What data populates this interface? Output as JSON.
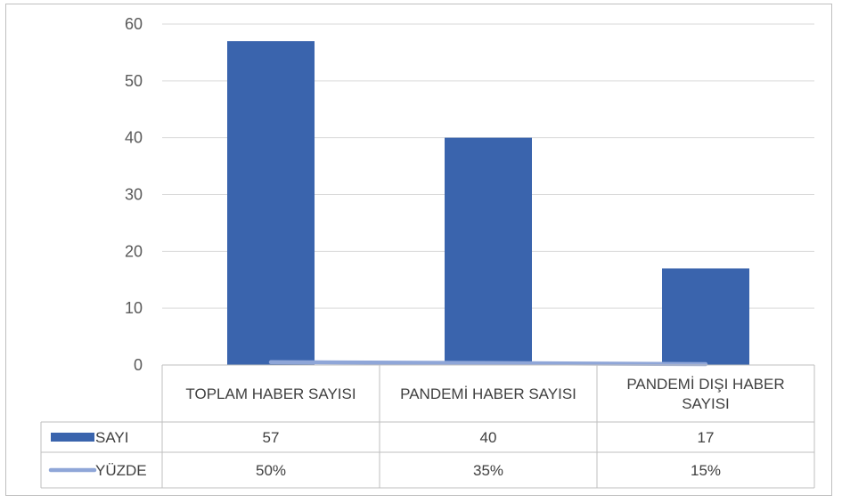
{
  "chart_data": {
    "type": "bar",
    "categories": [
      "TOPLAM HABER SAYISI",
      "PANDEMİ HABER SAYISI",
      "PANDEMİ DIŞI HABER SAYISI"
    ],
    "category_lines": [
      [
        "TOPLAM HABER SAYISI"
      ],
      [
        "PANDEMİ HABER SAYISI"
      ],
      [
        "PANDEMİ DIŞI HABER",
        "SAYISI"
      ]
    ],
    "series": [
      {
        "name": "SAYI",
        "type": "bar",
        "values": [
          57,
          40,
          17
        ],
        "display": [
          "57",
          "40",
          "17"
        ],
        "color": "#3a64ad"
      },
      {
        "name": "YÜZDE",
        "type": "line",
        "values": [
          0.5,
          0.35,
          0.15
        ],
        "display": [
          "50%",
          "35%",
          "15%"
        ],
        "color": "#8fa6d8"
      }
    ],
    "ylim": [
      0,
      60
    ],
    "yticks": [
      0,
      10,
      20,
      30,
      40,
      50,
      60
    ],
    "grid": true,
    "legend": "data-table",
    "title": "",
    "xlabel": "",
    "ylabel": ""
  }
}
